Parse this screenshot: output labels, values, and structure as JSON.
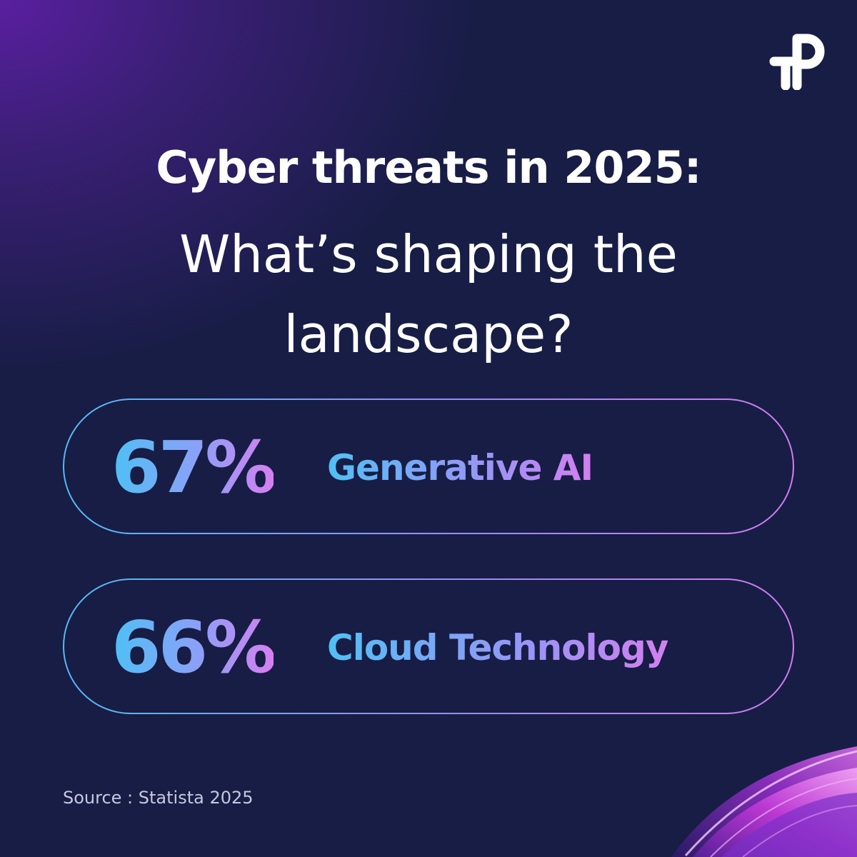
{
  "brand": {
    "logo_icon": "tp-logo-icon",
    "logo_color": "#ffffff"
  },
  "headline": {
    "bold": "Cyber threats in 2025:",
    "light_line1": "What’s shaping the",
    "light_line2": "landscape?"
  },
  "stats": [
    {
      "value": "67%",
      "label": "Generative AI"
    },
    {
      "value": "66%",
      "label": "Cloud Technology"
    }
  ],
  "source": "Source : Statista 2025",
  "colors": {
    "background": "#171d45",
    "background_glow": "#5a1fa0",
    "gradient_start": "#52bff4",
    "gradient_mid": "#9a94f7",
    "gradient_end": "#d47ff0"
  },
  "decoration": {
    "corner_graphic": "purple-swirl-decoration"
  }
}
